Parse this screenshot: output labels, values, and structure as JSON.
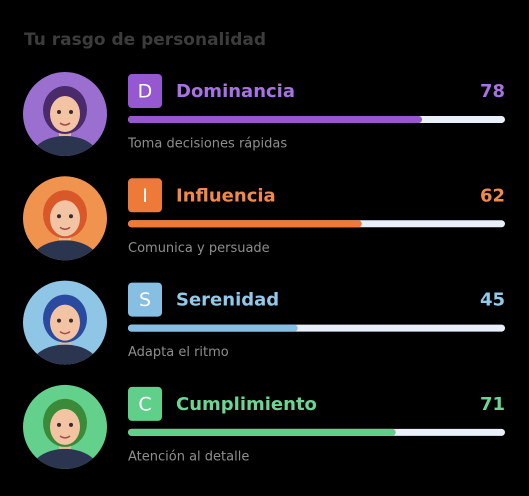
{
  "title": "Tu rasgo de personalidad",
  "xlim": [
    0,
    100
  ],
  "traits": [
    {
      "letter": "D",
      "name": "Dominancia",
      "value": 78,
      "description": "Toma decisiones rápidas",
      "color": "#9558d0",
      "text_color": "#a772e2",
      "avatar_bg": "#9a6fd0"
    },
    {
      "letter": "I",
      "name": "Influencia",
      "value": 62,
      "description": "Comunica y persuade",
      "color": "#ee7a3a",
      "text_color": "#f08a4a",
      "avatar_bg": "#f0934e"
    },
    {
      "letter": "S",
      "name": "Serenidad",
      "value": 45,
      "description": "Adapta el ritmo",
      "color": "#86bfe2",
      "text_color": "#92c9ea",
      "avatar_bg": "#8fc6e6"
    },
    {
      "letter": "C",
      "name": "Cumplimiento",
      "value": 71,
      "description": "Atención al detalle",
      "color": "#5fcf8a",
      "text_color": "#6bd694",
      "avatar_bg": "#63d08c"
    }
  ]
}
